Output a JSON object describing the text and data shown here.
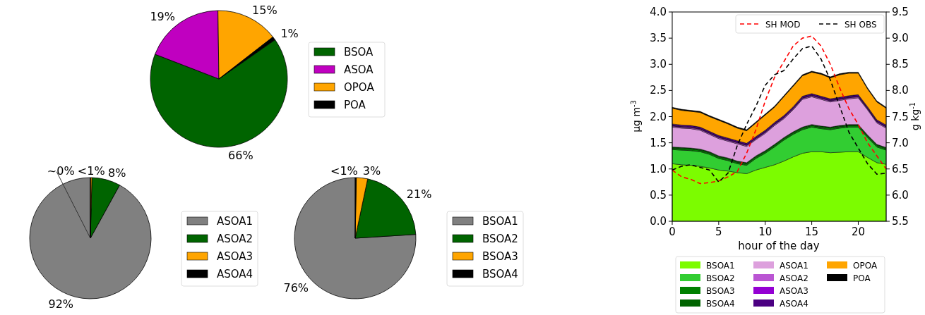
{
  "chart_data": [
    {
      "type": "pie",
      "categories": [
        "BSOA",
        "ASOA",
        "OPOA",
        "POA"
      ],
      "values": [
        65.6,
        18.9,
        14.7,
        0.8
      ],
      "colors": [
        "#006400",
        "#c000c0",
        "#ffa500",
        "#000000"
      ],
      "value_labels": [
        "66%",
        "19%",
        "15%",
        "1%"
      ],
      "legend": "right"
    },
    {
      "type": "pie",
      "categories": [
        "ASOA1",
        "ASOA2",
        "ASOA3",
        "ASOA4"
      ],
      "values": [
        92,
        7.6,
        0.4,
        0
      ],
      "colors": [
        "#808080",
        "#006400",
        "#ffa500",
        "#000000"
      ],
      "value_labels": [
        "92%",
        "8%",
        "<1%",
        "~0%"
      ],
      "legend": "right"
    },
    {
      "type": "pie",
      "categories": [
        "BSOA1",
        "BSOA2",
        "BSOA3",
        "BSOA4"
      ],
      "values": [
        76,
        20.7,
        3,
        0.3
      ],
      "colors": [
        "#808080",
        "#006400",
        "#ffa500",
        "#000000"
      ],
      "value_labels": [
        "76%",
        "21%",
        "3%",
        "<1%"
      ],
      "legend": "right"
    },
    {
      "type": "area",
      "stacked": true,
      "xlabel": "hour of the day",
      "ylabel": "µg m$^{-3}$",
      "y2label": "g kg$^{-1}$",
      "legend": "bottom",
      "x": [
        0,
        1,
        2,
        3,
        4,
        5,
        6,
        7,
        8,
        9,
        10,
        11,
        12,
        13,
        14,
        15,
        16,
        17,
        18,
        19,
        20,
        21,
        22,
        23
      ],
      "xlim": [
        0,
        23
      ],
      "xticks": [
        0,
        5,
        10,
        15,
        20
      ],
      "ylim": [
        0,
        4
      ],
      "yticks": [
        {
          "value": 0,
          "label": "0.0"
        },
        0.5,
        {
          "value": 1,
          "label": "1.0"
        },
        1.5,
        {
          "value": 2,
          "label": "2.0"
        },
        2.5,
        {
          "value": 3,
          "label": "3.0"
        },
        3.5,
        {
          "value": 4,
          "label": "4.0"
        }
      ],
      "y2lim": [
        5.5,
        9.5
      ],
      "y2ticks": [
        5.5,
        {
          "value": 6,
          "label": "6.0"
        },
        6.5,
        {
          "value": 7,
          "label": "7.0"
        },
        7.5,
        {
          "value": 8,
          "label": "8.0"
        },
        8.5,
        {
          "value": 9,
          "label": "9.0"
        },
        9.5
      ],
      "series": [
        {
          "name": "BSOA1",
          "color": "#7cfc00",
          "values": [
            1.1,
            1.08,
            1.07,
            1.05,
            1.02,
            0.98,
            0.96,
            0.93,
            0.91,
            0.98,
            1.03,
            1.08,
            1.15,
            1.23,
            1.3,
            1.33,
            1.33,
            1.31,
            1.32,
            1.33,
            1.33,
            1.22,
            1.12,
            1.09
          ]
        },
        {
          "name": "BSOA2",
          "color": "#32cd32",
          "values": [
            0.27,
            0.28,
            0.28,
            0.28,
            0.26,
            0.22,
            0.2,
            0.17,
            0.16,
            0.22,
            0.27,
            0.34,
            0.4,
            0.43,
            0.45,
            0.47,
            0.44,
            0.44,
            0.46,
            0.47,
            0.47,
            0.38,
            0.3,
            0.27
          ]
        },
        {
          "name": "BSOA3",
          "color": "#008000",
          "values": [
            0.03,
            0.03,
            0.03,
            0.03,
            0.03,
            0.03,
            0.03,
            0.03,
            0.03,
            0.03,
            0.03,
            0.03,
            0.03,
            0.03,
            0.03,
            0.03,
            0.03,
            0.03,
            0.03,
            0.03,
            0.03,
            0.03,
            0.03,
            0.03
          ]
        },
        {
          "name": "BSOA4",
          "color": "#006400",
          "values": [
            0.02,
            0.02,
            0.02,
            0.02,
            0.02,
            0.02,
            0.02,
            0.02,
            0.02,
            0.02,
            0.02,
            0.02,
            0.02,
            0.02,
            0.02,
            0.02,
            0.02,
            0.02,
            0.02,
            0.02,
            0.02,
            0.02,
            0.02,
            0.02
          ]
        },
        {
          "name": "ASOA1",
          "color": "#dda0dd",
          "values": [
            0.38,
            0.37,
            0.37,
            0.36,
            0.33,
            0.33,
            0.32,
            0.33,
            0.31,
            0.31,
            0.33,
            0.36,
            0.36,
            0.42,
            0.53,
            0.53,
            0.51,
            0.48,
            0.48,
            0.49,
            0.51,
            0.48,
            0.41,
            0.37
          ]
        },
        {
          "name": "ASOA2",
          "color": "#ba55d3",
          "values": [
            0.02,
            0.02,
            0.02,
            0.02,
            0.02,
            0.02,
            0.02,
            0.02,
            0.02,
            0.02,
            0.02,
            0.02,
            0.02,
            0.02,
            0.02,
            0.02,
            0.02,
            0.02,
            0.02,
            0.02,
            0.02,
            0.02,
            0.02,
            0.02
          ]
        },
        {
          "name": "ASOA3",
          "color": "#9400d3",
          "values": [
            0.01,
            0.01,
            0.01,
            0.01,
            0.01,
            0.01,
            0.01,
            0.01,
            0.01,
            0.01,
            0.01,
            0.01,
            0.01,
            0.01,
            0.01,
            0.01,
            0.01,
            0.01,
            0.01,
            0.01,
            0.01,
            0.01,
            0.01,
            0.01
          ]
        },
        {
          "name": "ASOA4",
          "color": "#4b0082",
          "values": [
            0.03,
            0.03,
            0.03,
            0.03,
            0.03,
            0.03,
            0.03,
            0.03,
            0.03,
            0.03,
            0.03,
            0.03,
            0.03,
            0.03,
            0.03,
            0.03,
            0.03,
            0.03,
            0.03,
            0.03,
            0.03,
            0.03,
            0.03,
            0.03
          ]
        },
        {
          "name": "OPOA",
          "color": "#ffa500",
          "values": [
            0.3,
            0.28,
            0.27,
            0.28,
            0.28,
            0.29,
            0.27,
            0.24,
            0.24,
            0.26,
            0.29,
            0.29,
            0.36,
            0.39,
            0.39,
            0.41,
            0.42,
            0.4,
            0.43,
            0.43,
            0.41,
            0.34,
            0.34,
            0.32
          ]
        },
        {
          "name": "POA",
          "color": "#000000",
          "values": [
            0.02,
            0.02,
            0.02,
            0.02,
            0.02,
            0.02,
            0.02,
            0.02,
            0.02,
            0.02,
            0.02,
            0.02,
            0.02,
            0.02,
            0.02,
            0.02,
            0.02,
            0.02,
            0.02,
            0.02,
            0.02,
            0.02,
            0.02,
            0.02
          ]
        },
        {
          "name": "SH MOD",
          "type": "line",
          "axis": "y2",
          "line_style": "dashed",
          "color": "#ff0000",
          "values": [
            6.48,
            6.35,
            6.3,
            6.22,
            6.24,
            6.27,
            6.35,
            6.45,
            6.8,
            7.25,
            7.8,
            8.25,
            8.55,
            8.85,
            9.0,
            9.04,
            8.85,
            8.5,
            8.05,
            7.65,
            7.35,
            7.0,
            6.75,
            6.5
          ]
        },
        {
          "name": "SH OBS",
          "type": "line",
          "axis": "y2",
          "line_style": "dashed",
          "color": "#000000",
          "values": [
            6.48,
            6.55,
            6.58,
            6.53,
            6.48,
            6.25,
            6.42,
            6.95,
            7.35,
            7.7,
            8.1,
            8.3,
            8.38,
            8.6,
            8.8,
            8.85,
            8.6,
            8.2,
            7.7,
            7.2,
            6.9,
            6.6,
            6.4,
            6.42
          ]
        }
      ]
    }
  ]
}
